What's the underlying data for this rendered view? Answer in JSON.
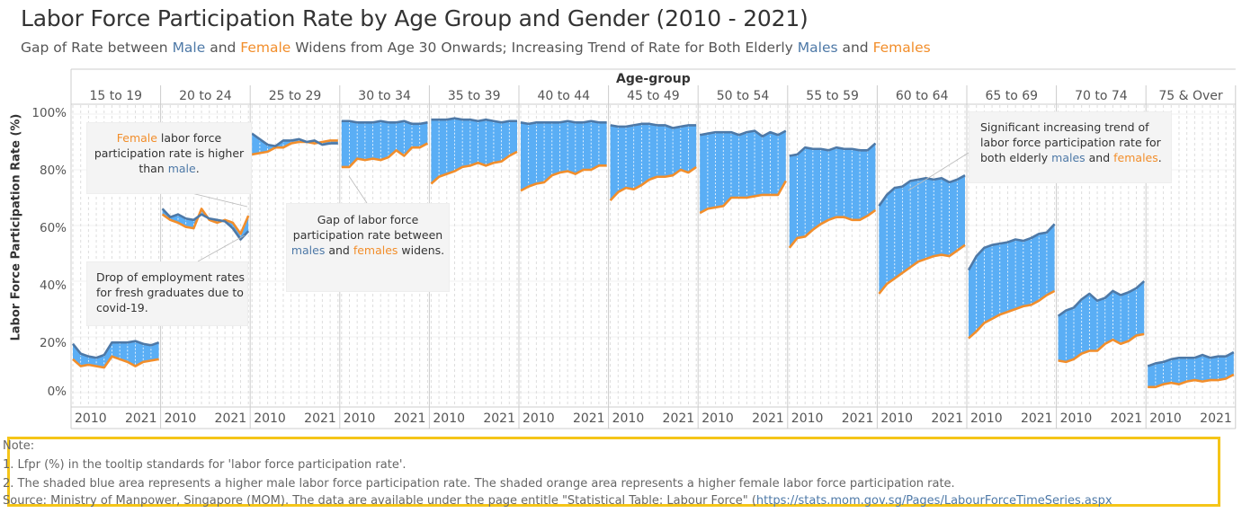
{
  "title": "Labor Force Participation Rate by Age Group and Gender (2010 - 2021)",
  "subtitle": {
    "p1": "Gap of Rate between ",
    "male": "Male",
    "p2": " and ",
    "female": "Female",
    "p3": " Widens from Age 30 Onwards; Increasing Trend of Rate for Both Elderly ",
    "males": "Males",
    "p4": " and ",
    "females": "Females"
  },
  "colors": {
    "male": "#4e79a7",
    "female": "#f28e2b",
    "fill": "#5aaef5"
  },
  "callouts": {
    "female_higher": {
      "w1": "Female",
      "t1": " labor force participation rate is higher than ",
      "w2": "male",
      "t2": "."
    },
    "gap": {
      "t1": "Gap of labor force participation rate between ",
      "w1": "males",
      "t2": " and ",
      "w2": "females",
      "t3": "  widens."
    },
    "drop": "Drop of employment rates for fresh graduates due to covid-19.",
    "elderly": {
      "t1": "Significant increasing trend of labor force participation rate for both elderly ",
      "w1": "males",
      "t2": " and ",
      "w2": "females",
      "t3": "."
    }
  },
  "notes": {
    "heading": "Note:",
    "n1": "1. Lfpr (%) in the tooltip standards for 'labor force participation rate'.",
    "n2": "2. The shaded blue area represents a higher male labor force participation rate. The shaded orange area represents a higher female labor force participation rate.",
    "source_label": "Source:",
    "source_text": "  Ministry of Manpower, Singapore (MOM). The data are available under the page entitle \"Statistical Table: Labour Force\" (",
    "source_link": "https://stats.mom.gov.sg/Pages/LabourForceTimeSeries.aspx"
  },
  "chart_data": {
    "type": "area",
    "title": "Labor Force Participation Rate by Age Group and Gender (2010 - 2021)",
    "column_header": "Age-group",
    "ylabel": "Labor Force Participation Rate (%)",
    "ylim": [
      0,
      100
    ],
    "yticks": [
      "0%",
      "20%",
      "40%",
      "60%",
      "80%",
      "100%"
    ],
    "x_tick_labels": [
      "2010",
      "2021"
    ],
    "grid": true,
    "years": [
      2010,
      2011,
      2012,
      2013,
      2014,
      2015,
      2016,
      2017,
      2018,
      2019,
      2020,
      2021
    ],
    "panels": [
      {
        "group": "15 to 19",
        "male": [
          17.5,
          14,
          13,
          12.5,
          13.5,
          18,
          18,
          18,
          18.5,
          17.5,
          17,
          18
        ],
        "female": [
          12,
          9.5,
          10,
          9.5,
          9,
          13,
          12,
          11,
          9.5,
          11,
          11.5,
          12
        ]
      },
      {
        "group": "20 to 24",
        "male": [
          66,
          63,
          64,
          62.5,
          62,
          64,
          62.5,
          62,
          61.5,
          59,
          55,
          58
        ],
        "female": [
          64,
          62,
          61,
          59.5,
          59,
          66,
          62,
          61,
          62,
          61,
          57,
          63.5
        ]
      },
      {
        "group": "25 to 29",
        "male": [
          93,
          91,
          89,
          88.5,
          90.5,
          90.5,
          91,
          90,
          90.5,
          89,
          89.5,
          89.5
        ],
        "female": [
          85.5,
          86,
          86.5,
          88,
          88,
          89.5,
          90,
          90,
          89.5,
          90,
          90.5,
          90.5
        ]
      },
      {
        "group": "30 to 34",
        "male": [
          97.5,
          97.5,
          97,
          97,
          97,
          97.5,
          97,
          97,
          97.5,
          96.5,
          96.5,
          97
        ],
        "female": [
          81,
          81,
          84,
          83.5,
          84,
          83.5,
          84.5,
          87,
          85,
          88,
          88,
          89.5
        ]
      },
      {
        "group": "35 to 39",
        "male": [
          98,
          98,
          98,
          98.5,
          98,
          98,
          97.5,
          98,
          97.5,
          97,
          97.5,
          97.5
        ],
        "female": [
          75,
          77.5,
          78.5,
          79.5,
          81,
          81.5,
          82.5,
          81.5,
          82.5,
          83,
          85,
          86.5
        ]
      },
      {
        "group": "40 to 44",
        "male": [
          97,
          96.5,
          97,
          97,
          97,
          97,
          97.5,
          97,
          97,
          97.5,
          97,
          97
        ],
        "female": [
          72.5,
          74,
          75,
          75.5,
          78,
          79,
          79.5,
          78.5,
          80,
          80,
          81.5,
          81.5
        ]
      },
      {
        "group": "45 to 49",
        "male": [
          96,
          95.5,
          95.5,
          96,
          96.5,
          96.5,
          96,
          96,
          95,
          95.5,
          96,
          96
        ],
        "female": [
          69,
          72,
          73.5,
          73,
          74.5,
          76.5,
          77.5,
          77.5,
          78,
          80,
          79,
          81
        ]
      },
      {
        "group": "50 to 54",
        "male": [
          92.5,
          93,
          93.5,
          93.5,
          93.5,
          92.5,
          93.5,
          94,
          92,
          93.5,
          92.5,
          94
        ],
        "female": [
          64.5,
          66,
          66.5,
          67,
          70,
          70,
          70,
          70.5,
          71,
          71,
          71,
          76
        ]
      },
      {
        "group": "55 to 59",
        "male": [
          85,
          85.5,
          88,
          87.5,
          87.5,
          87,
          88,
          87.5,
          87.5,
          87,
          87,
          89.5
        ],
        "female": [
          52,
          55.5,
          56,
          58.5,
          60.5,
          62,
          63,
          63,
          62,
          62,
          63.5,
          65.5
        ]
      },
      {
        "group": "60 to 64",
        "male": [
          67,
          71,
          73.5,
          74,
          76,
          76.5,
          77,
          76.5,
          77,
          75.5,
          76.5,
          78
        ],
        "female": [
          35.5,
          39,
          41,
          43,
          45,
          47,
          48,
          49,
          49.5,
          49,
          51,
          53
        ]
      },
      {
        "group": "65 to 69",
        "male": [
          44,
          49,
          52,
          53,
          53.5,
          54,
          55,
          54.5,
          55.5,
          57,
          57.5,
          60.5
        ],
        "female": [
          19.5,
          22,
          25,
          26.5,
          28,
          29,
          30,
          31,
          31.5,
          33,
          35,
          36.5
        ]
      },
      {
        "group": "70 to 74",
        "male": [
          27.5,
          29.5,
          30.5,
          33.5,
          35.5,
          33,
          34,
          36.5,
          35,
          36,
          37.5,
          40
        ],
        "female": [
          11.5,
          11,
          12,
          14,
          15,
          15,
          17.5,
          19,
          17.5,
          18.5,
          20.5,
          21
        ]
      },
      {
        "group": "75 & Over",
        "male": [
          9.5,
          10.5,
          11,
          12,
          12.5,
          12.5,
          12.5,
          13.5,
          12.5,
          13,
          13,
          14.5
        ],
        "female": [
          2,
          2,
          3,
          3.5,
          3,
          4,
          4.5,
          4,
          4.5,
          4.5,
          5,
          6.5
        ]
      }
    ]
  }
}
